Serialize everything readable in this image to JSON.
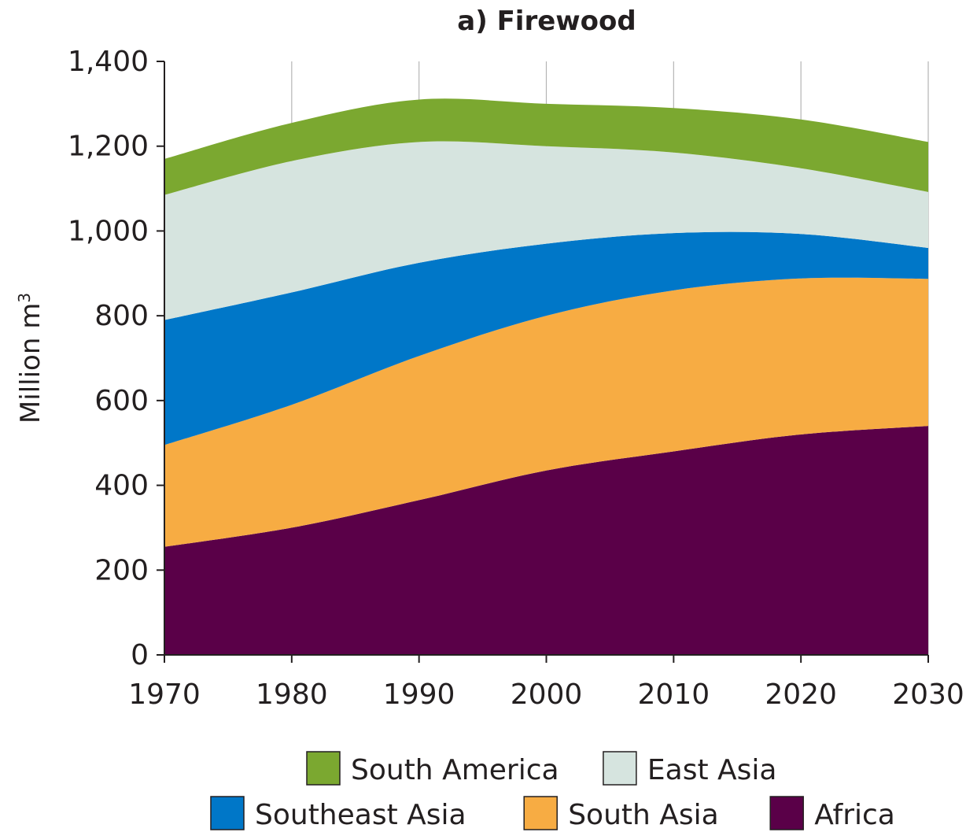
{
  "chart_data": {
    "type": "area",
    "stacked": true,
    "title": "a) Firewood",
    "xlabel": "",
    "ylabel": "Million m",
    "ylabel_superscript": "3",
    "x": [
      1970,
      1980,
      1990,
      2000,
      2010,
      2020,
      2030
    ],
    "x_tick_labels": [
      "1970",
      "1980",
      "1990",
      "2000",
      "2010",
      "2020",
      "2030"
    ],
    "xlim": [
      1970,
      2030
    ],
    "y_ticks": [
      0,
      200,
      400,
      600,
      800,
      1000,
      1200,
      1400
    ],
    "y_tick_labels": [
      "0",
      "200",
      "400",
      "600",
      "800",
      "1,000",
      "1,200",
      "1,400"
    ],
    "ylim": [
      0,
      1400
    ],
    "grid": "vertical",
    "legend_position": "bottom",
    "series": [
      {
        "name": "Africa",
        "color": "#5a0048",
        "values": [
          255,
          300,
          365,
          435,
          480,
          520,
          540
        ]
      },
      {
        "name": "South Asia",
        "color": "#f7ac43",
        "values": [
          240,
          290,
          340,
          365,
          380,
          368,
          347
        ]
      },
      {
        "name": "Southeast Asia",
        "color": "#0077c8",
        "values": [
          295,
          265,
          220,
          170,
          135,
          105,
          73
        ]
      },
      {
        "name": "East Asia",
        "color": "#d6e4df",
        "values": [
          295,
          310,
          285,
          230,
          190,
          155,
          132
        ]
      },
      {
        "name": "South America",
        "color": "#7ba830",
        "values": [
          85,
          90,
          100,
          100,
          105,
          115,
          118
        ]
      }
    ],
    "legend_rows": [
      [
        "South America",
        "East Asia"
      ],
      [
        "Southeast Asia",
        "South Asia",
        "Africa"
      ]
    ]
  }
}
